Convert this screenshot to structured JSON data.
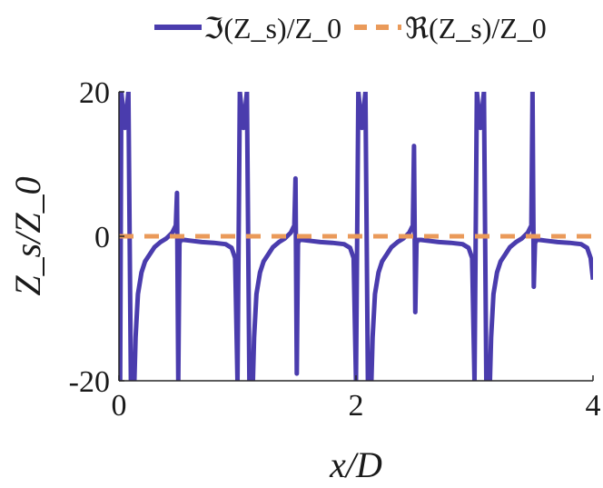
{
  "chart_data": {
    "type": "line",
    "xlabel": "x/D",
    "ylabel": "Z_s/Z_0",
    "xlim": [
      0,
      4
    ],
    "ylim": [
      -20,
      20
    ],
    "x_ticks": [
      0,
      2,
      4
    ],
    "x_tick_labels": [
      "0",
      "2",
      "4"
    ],
    "y_ticks": [
      -20,
      0,
      20
    ],
    "y_tick_labels": [
      "-20",
      "0",
      "20"
    ],
    "grid": false,
    "legend_position": "top",
    "series": [
      {
        "name": "ℑ(Z_s)/Z_0",
        "style": "solid",
        "color": "#4a3cad",
        "x": [
          0.0,
          0.01,
          0.02,
          0.05,
          0.08,
          0.1,
          0.13,
          0.14,
          0.16,
          0.19,
          0.22,
          0.26,
          0.3,
          0.35,
          0.4,
          0.45,
          0.48,
          0.49,
          0.5,
          0.51,
          0.52,
          0.55,
          0.6,
          0.7,
          0.8,
          0.9,
          0.95,
          0.98,
          1.0,
          1.02,
          1.05,
          1.08,
          1.1,
          1.13,
          1.14,
          1.16,
          1.19,
          1.22,
          1.26,
          1.3,
          1.35,
          1.4,
          1.45,
          1.48,
          1.49,
          1.5,
          1.51,
          1.52,
          1.55,
          1.6,
          1.7,
          1.8,
          1.9,
          1.95,
          1.98,
          2.0,
          2.02,
          2.05,
          2.08,
          2.1,
          2.13,
          2.14,
          2.16,
          2.19,
          2.22,
          2.26,
          2.3,
          2.35,
          2.4,
          2.45,
          2.48,
          2.49,
          2.5,
          2.51,
          2.52,
          2.55,
          2.6,
          2.7,
          2.8,
          2.9,
          2.95,
          2.98,
          3.0,
          3.02,
          3.05,
          3.08,
          3.1,
          3.13,
          3.14,
          3.16,
          3.19,
          3.22,
          3.26,
          3.3,
          3.35,
          3.4,
          3.45,
          3.48,
          3.49,
          3.5,
          3.51,
          3.52,
          3.55,
          3.6,
          3.7,
          3.8,
          3.9,
          3.95,
          3.98,
          4.0
        ],
        "y": [
          -6,
          -20,
          20,
          15,
          20,
          -20,
          -20,
          -14,
          -8,
          -5,
          -3.5,
          -2.5,
          -1.5,
          -0.8,
          -0.3,
          0.5,
          1.5,
          6,
          -20,
          -1,
          -0.5,
          -0.5,
          -0.6,
          -0.8,
          -0.9,
          -1.1,
          -1.6,
          -3,
          -20,
          20,
          15,
          20,
          -20,
          -20,
          -14,
          -8,
          -5,
          -3.5,
          -2.5,
          -1.5,
          -0.8,
          -0.3,
          0.5,
          1.5,
          8,
          -19,
          -1,
          -0.5,
          -0.5,
          -0.6,
          -0.8,
          -0.9,
          -1.1,
          -1.6,
          -3,
          -20,
          20,
          15,
          20,
          -20,
          -20,
          -14,
          -8,
          -5,
          -3.5,
          -2.5,
          -1.5,
          -0.8,
          -0.3,
          0.5,
          1.5,
          12.5,
          -10.5,
          -1,
          -0.5,
          -0.5,
          -0.6,
          -0.8,
          -0.9,
          -1.1,
          -1.6,
          -3,
          -20,
          20,
          15,
          20,
          -20,
          -20,
          -14,
          -8,
          -5,
          -3.5,
          -2.5,
          -1.5,
          -0.8,
          -0.3,
          0.5,
          1.5,
          20,
          -7,
          -1,
          -0.5,
          -0.5,
          -0.6,
          -0.8,
          -0.9,
          -1.1,
          -1.6,
          -3,
          -6
        ]
      },
      {
        "name": "ℜ(Z_s)/Z_0",
        "style": "dashed",
        "color": "#ea9a5a",
        "x": [
          0,
          4
        ],
        "y": [
          0,
          0
        ]
      }
    ]
  }
}
